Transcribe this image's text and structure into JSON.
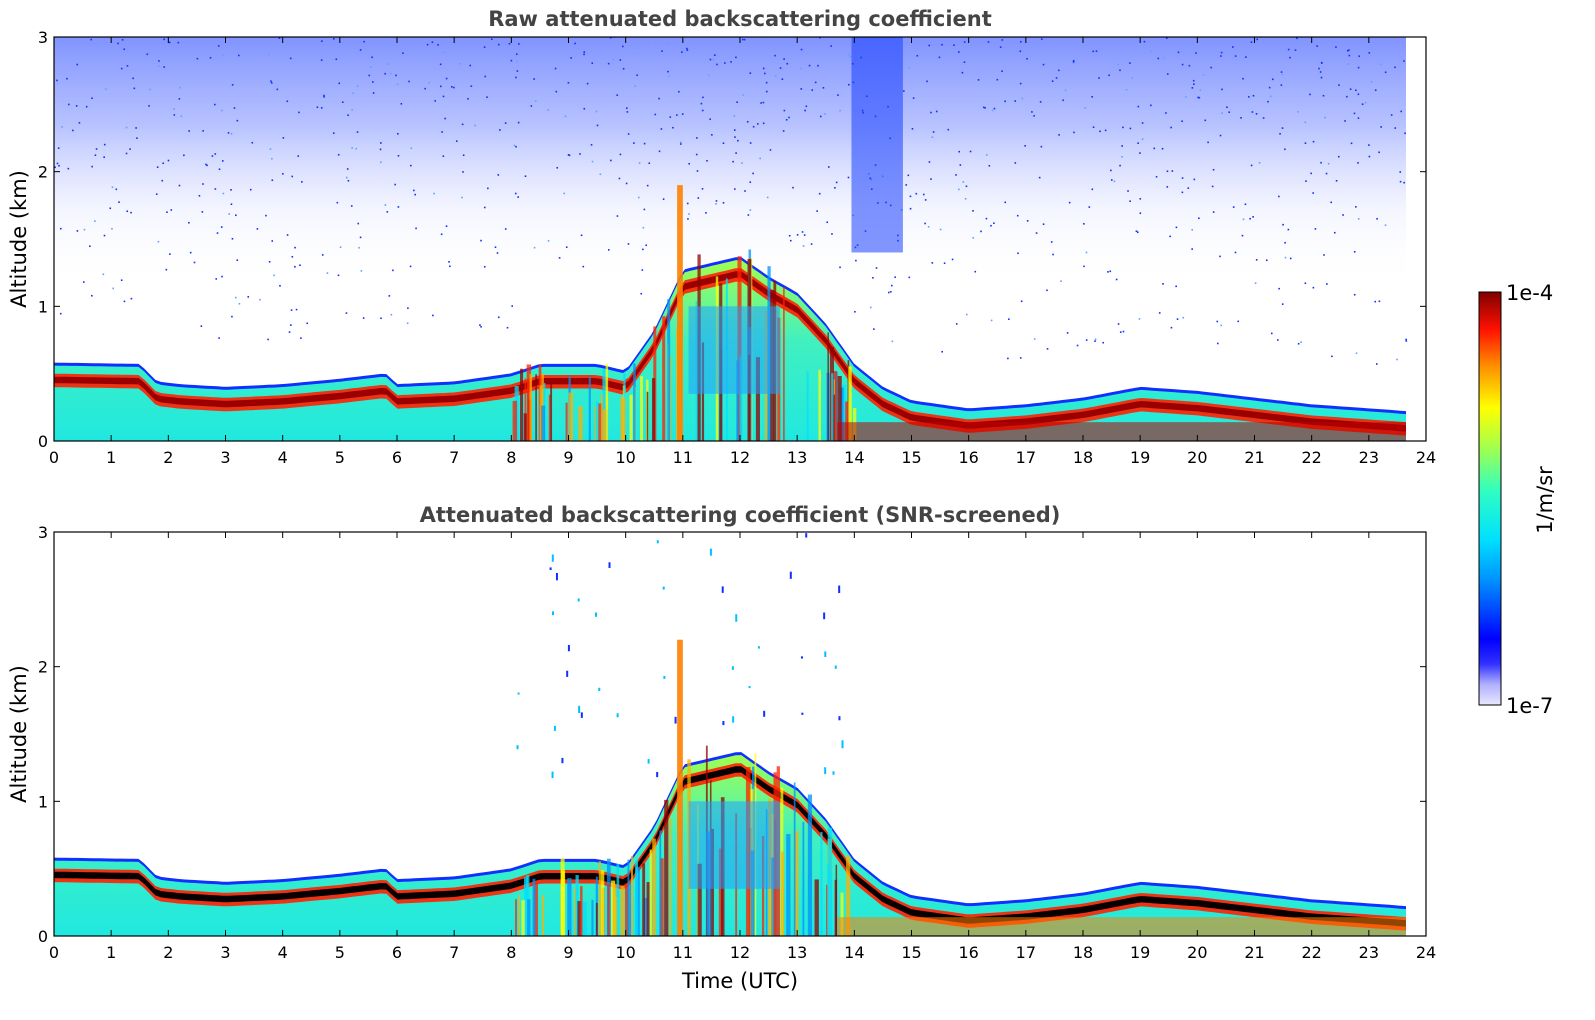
{
  "chart_data": [
    {
      "type": "heatmap",
      "title": "Raw attenuated backscattering coefficient",
      "xlabel": "",
      "ylabel": "Altitude (km)",
      "xlim": [
        0,
        24
      ],
      "ylim": [
        0,
        3
      ],
      "xticks": [
        "0",
        "1",
        "2",
        "3",
        "4",
        "5",
        "6",
        "7",
        "8",
        "9",
        "10",
        "11",
        "12",
        "13",
        "14",
        "15",
        "16",
        "17",
        "18",
        "19",
        "20",
        "21",
        "22",
        "23",
        "24"
      ],
      "yticks": [
        "0",
        "1",
        "2",
        "3"
      ],
      "data_end_time": 23.65,
      "layer_top_km": [
        [
          0,
          0.56
        ],
        [
          1.5,
          0.55
        ],
        [
          1.8,
          0.42
        ],
        [
          2.2,
          0.4
        ],
        [
          3,
          0.38
        ],
        [
          4,
          0.4
        ],
        [
          5,
          0.44
        ],
        [
          5.8,
          0.48
        ],
        [
          6,
          0.4
        ],
        [
          7,
          0.42
        ],
        [
          7.5,
          0.45
        ],
        [
          8,
          0.48
        ],
        [
          8.5,
          0.55
        ],
        [
          9,
          0.55
        ],
        [
          9.5,
          0.55
        ],
        [
          10,
          0.5
        ],
        [
          10.5,
          0.8
        ],
        [
          11,
          1.25
        ],
        [
          11.5,
          1.3
        ],
        [
          12,
          1.35
        ],
        [
          12.5,
          1.2
        ],
        [
          13,
          1.08
        ],
        [
          13.5,
          0.85
        ],
        [
          14,
          0.55
        ],
        [
          14.5,
          0.38
        ],
        [
          15,
          0.28
        ],
        [
          16,
          0.22
        ],
        [
          17,
          0.25
        ],
        [
          18,
          0.3
        ],
        [
          19,
          0.38
        ],
        [
          20,
          0.35
        ],
        [
          21,
          0.3
        ],
        [
          22,
          0.25
        ],
        [
          23,
          0.22
        ],
        [
          23.65,
          0.2
        ]
      ],
      "colorbar": {
        "min_label": "1e-7",
        "max_label": "1e-4",
        "unit": "1/m/sr",
        "scale": "log",
        "colormap": "jet"
      }
    },
    {
      "type": "heatmap",
      "title": "Attenuated backscattering coefficient (SNR-screened)",
      "xlabel": "Time (UTC)",
      "ylabel": "Altitude (km)",
      "xlim": [
        0,
        24
      ],
      "ylim": [
        0,
        3
      ],
      "xticks": [
        "0",
        "1",
        "2",
        "3",
        "4",
        "5",
        "6",
        "7",
        "8",
        "9",
        "10",
        "11",
        "12",
        "13",
        "14",
        "15",
        "16",
        "17",
        "18",
        "19",
        "20",
        "21",
        "22",
        "23",
        "24"
      ],
      "yticks": [
        "0",
        "1",
        "2",
        "3"
      ],
      "data_end_time": 23.65,
      "colorbar": {
        "min_label": "1e-7",
        "max_label": "1e-4",
        "unit": "1/m/sr",
        "scale": "log",
        "colormap": "jet"
      }
    }
  ],
  "colorbar": {
    "max_label": "1e-4",
    "min_label": "1e-7",
    "unit": "1/m/sr"
  }
}
